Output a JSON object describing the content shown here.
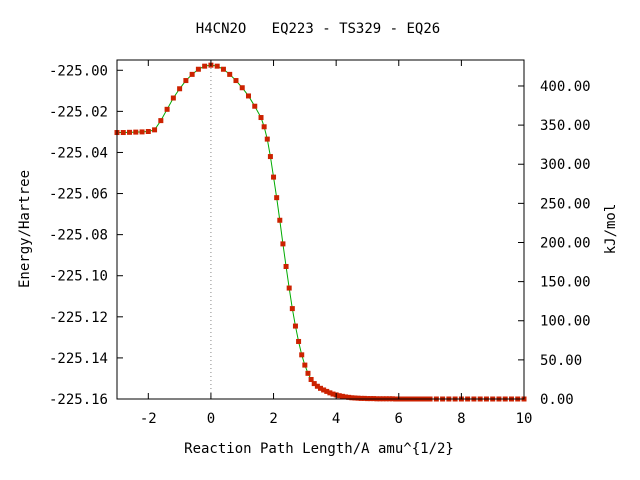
{
  "chart_data": {
    "type": "line",
    "title": "H4CN2O   EQ223 - TS329 - EQ26",
    "xlabel": "Reaction Path Length/A amu^{1/2}",
    "ylabel": "Energy/Hartree",
    "y2label": "kJ/mol",
    "xlim": [
      -3,
      10
    ],
    "ylim": [
      -225.16,
      -224.995
    ],
    "y2lim": [
      0,
      433.2
    ],
    "xticks": [
      -2,
      0,
      2,
      4,
      6,
      8,
      10
    ],
    "xtick_labels": [
      "-2",
      "0",
      "2",
      "4",
      "6",
      "8",
      "10"
    ],
    "yticks": [
      -225.0,
      -225.02,
      -225.04,
      -225.06,
      -225.08,
      -225.1,
      -225.12,
      -225.14,
      -225.16
    ],
    "ytick_labels": [
      "-225.00",
      "-225.02",
      "-225.04",
      "-225.06",
      "-225.08",
      "-225.10",
      "-225.12",
      "-225.14",
      "-225.16"
    ],
    "y2ticks": [
      0,
      50,
      100,
      150,
      200,
      250,
      300,
      350,
      400
    ],
    "y2tick_labels": [
      "0.00",
      "50.00",
      "100.00",
      "150.00",
      "200.00",
      "250.00",
      "300.00",
      "350.00",
      "400.00"
    ],
    "ts_marker_x": 0,
    "line_color": "#00aa00",
    "marker_color": "#cc2200",
    "series": [
      {
        "x": [
          -3.0,
          -2.8,
          -2.6,
          -2.4,
          -2.2,
          -2.0,
          -1.8,
          -1.6,
          -1.4,
          -1.2,
          -1.0,
          -0.8,
          -0.6,
          -0.4,
          -0.2,
          0.0,
          0.2,
          0.4,
          0.6,
          0.8,
          1.0,
          1.2,
          1.4,
          1.6,
          1.7,
          1.8,
          1.9,
          2.0,
          2.1,
          2.2,
          2.3,
          2.4,
          2.5,
          2.6,
          2.7,
          2.8,
          2.9,
          3.0,
          3.1,
          3.2,
          3.3,
          3.4,
          3.5,
          3.6,
          3.7,
          3.8,
          3.9,
          4.0,
          4.1,
          4.2,
          4.3,
          4.4,
          4.5,
          4.6,
          4.7,
          4.8,
          4.9,
          5.0,
          5.1,
          5.2,
          5.3,
          5.4,
          5.5,
          5.6,
          5.7,
          5.8,
          5.9,
          6.0,
          6.1,
          6.2,
          6.3,
          6.4,
          6.5,
          6.6,
          6.7,
          6.8,
          6.9,
          7.0,
          7.2,
          7.4,
          7.6,
          7.8,
          8.0,
          8.2,
          8.4,
          8.6,
          8.8,
          9.0,
          9.2,
          9.4,
          9.6,
          9.8,
          10.0
        ],
        "y": [
          -225.0303,
          -225.0303,
          -225.0302,
          -225.0301,
          -225.03,
          -225.0298,
          -225.029,
          -225.0245,
          -225.019,
          -225.0135,
          -225.009,
          -225.005,
          -225.002,
          -224.9995,
          -224.998,
          -224.9975,
          -224.998,
          -224.9995,
          -225.002,
          -225.005,
          -225.0085,
          -225.0125,
          -225.0175,
          -225.023,
          -225.0275,
          -225.0335,
          -225.042,
          -225.052,
          -225.062,
          -225.073,
          -225.0845,
          -225.0955,
          -225.106,
          -225.116,
          -225.1245,
          -225.132,
          -225.1385,
          -225.1435,
          -225.1475,
          -225.1505,
          -225.1525,
          -225.1538,
          -225.1548,
          -225.1556,
          -225.1563,
          -225.157,
          -225.1576,
          -225.158,
          -225.1584,
          -225.1587,
          -225.159,
          -225.1592,
          -225.1594,
          -225.1595,
          -225.1596,
          -225.1597,
          -225.1597,
          -225.1598,
          -225.1598,
          -225.1598,
          -225.1599,
          -225.1599,
          -225.1599,
          -225.1599,
          -225.1599,
          -225.1599,
          -225.16,
          -225.16,
          -225.16,
          -225.16,
          -225.16,
          -225.16,
          -225.16,
          -225.16,
          -225.16,
          -225.16,
          -225.16,
          -225.16,
          -225.16,
          -225.16,
          -225.16,
          -225.16,
          -225.16,
          -225.16,
          -225.16,
          -225.16,
          -225.16,
          -225.16,
          -225.16,
          -225.16,
          -225.16,
          -225.16,
          -225.16
        ]
      }
    ]
  }
}
